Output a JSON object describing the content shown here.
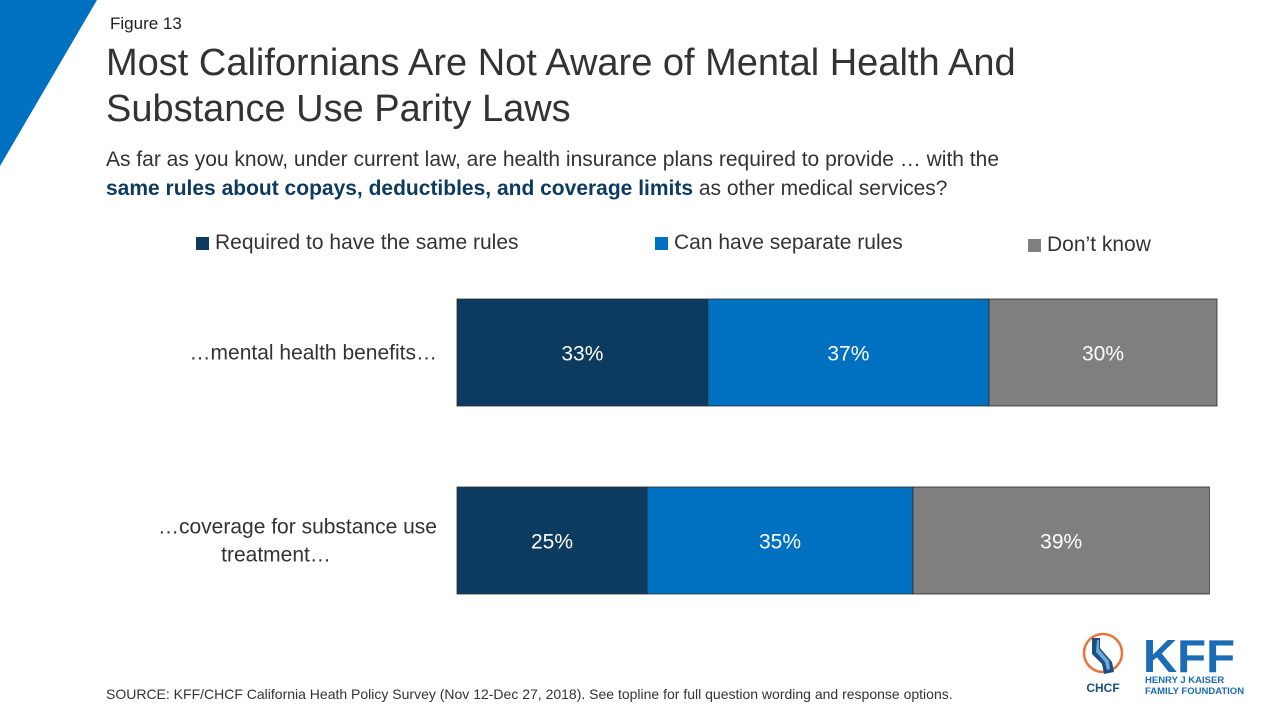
{
  "figure_label": "Figure 13",
  "title": "Most Californians Are Not Aware of Mental Health And Substance Use Parity Laws",
  "subtitle": {
    "part1": "As far as you know, under current law, are health insurance plans required to provide … with the",
    "highlight": "same rules about copays, deductibles, and coverage limits",
    "part2": " as other medical services?"
  },
  "source": "SOURCE: KFF/CHCF California Heath Policy Survey (Nov 12-Dec 27, 2018). See topline for full question wording and response options.",
  "logos": {
    "chcf": "CHCF",
    "kff": "KFF",
    "kff_line1": "HENRY J KAISER",
    "kff_line2": "FAMILY FOUNDATION"
  },
  "colors": {
    "accent": "#0070c0",
    "dark_navy": "#0d3a5f",
    "gray": "#7f7f7f"
  },
  "chart_data": {
    "type": "bar",
    "orientation": "horizontal",
    "stacked": true,
    "categories": [
      "…mental health benefits…",
      "…coverage for substance use treatment…"
    ],
    "category_lines": [
      [
        "…mental health benefits…"
      ],
      [
        "…coverage for substance use",
        "treatment…"
      ]
    ],
    "series": [
      {
        "name": "Required to have the same rules",
        "values": [
          33,
          25
        ],
        "labels": [
          "33%",
          "25%"
        ],
        "color": "#0d3a5f"
      },
      {
        "name": "Can have separate rules",
        "values": [
          37,
          35
        ],
        "labels": [
          "37%",
          "35%"
        ],
        "color": "#0070c0"
      },
      {
        "name": "Don’t know",
        "values": [
          30,
          39
        ],
        "labels": [
          "30%",
          "39%"
        ],
        "color": "#7f7f7f"
      }
    ],
    "xlim": [
      0,
      100
    ],
    "legend": "top",
    "grid": false
  }
}
